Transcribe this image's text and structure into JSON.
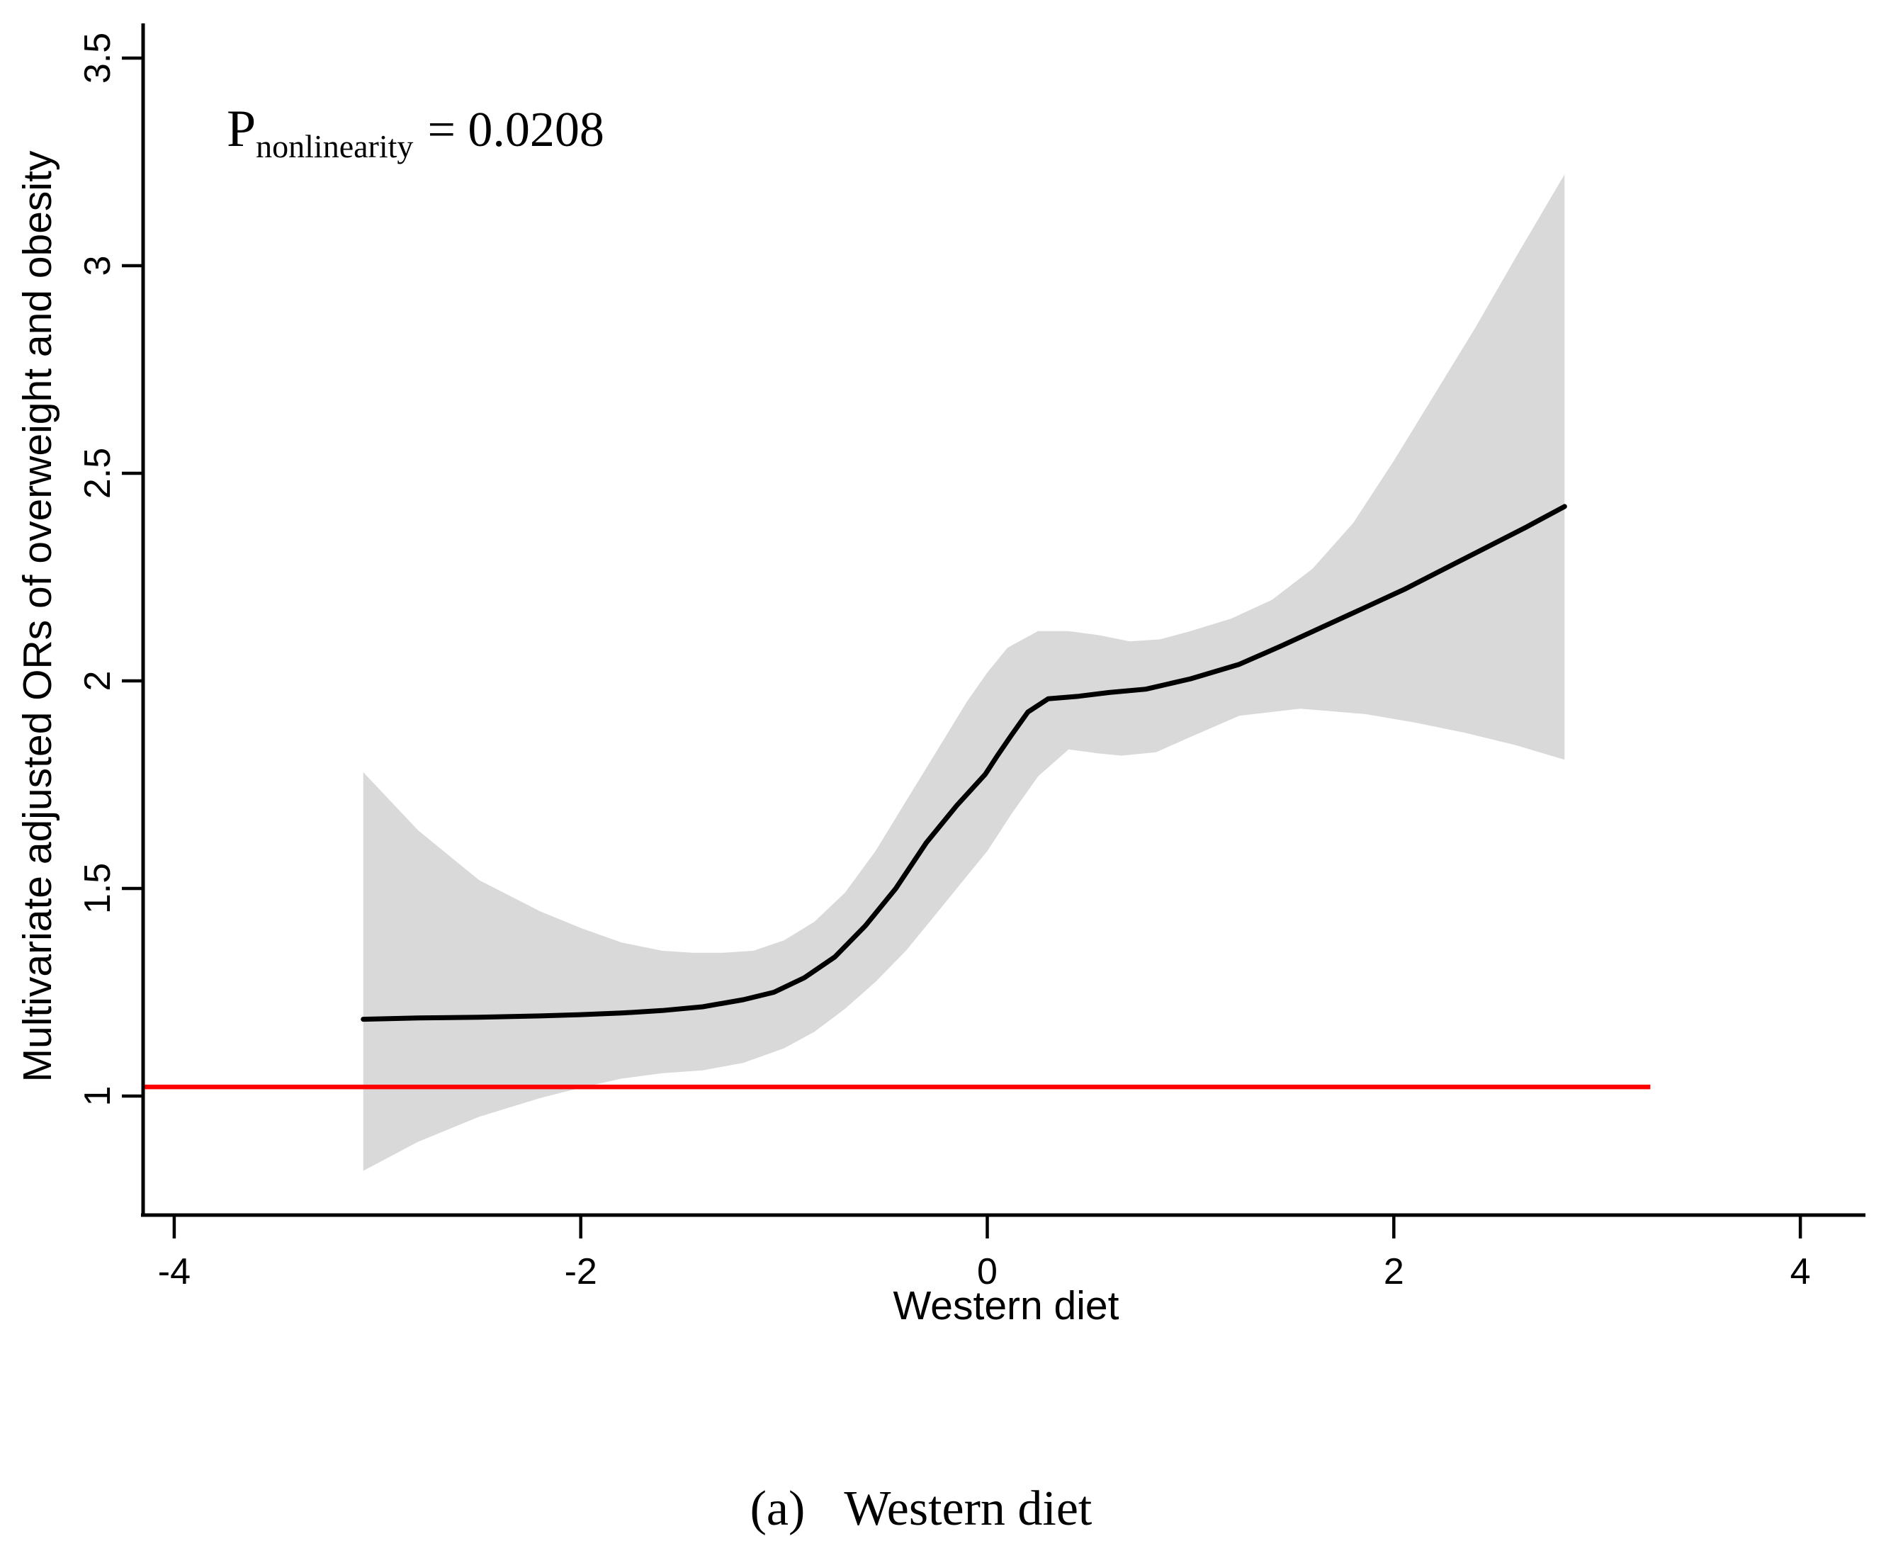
{
  "chart_data": {
    "type": "line",
    "subtype": "restricted-cubic-spline-with-confidence-band",
    "title": "",
    "xlabel": "Western diet",
    "ylabel": "Multivariate adjusted ORs of overweight and obesity",
    "caption": {
      "prefix": "(a)",
      "text": "Western diet"
    },
    "annotation": {
      "p": "P",
      "sub": "nonlinearity",
      "value": "= 0.0208"
    },
    "x_ticks": [
      -4,
      -2,
      0,
      2,
      4
    ],
    "y_ticks": [
      1,
      1.5,
      2,
      2.5,
      3,
      3.5
    ],
    "xlim": [
      -4.15,
      4.32
    ],
    "ylim": [
      0.71,
      3.58
    ],
    "grid": false,
    "legend": "none",
    "colors": {
      "curve": "#000000",
      "band": "#D9D9D9",
      "reference": "#FF0000",
      "axis": "#000000"
    },
    "series": [
      {
        "name": "multivariate-adjusted-OR-spline",
        "color": "#000000",
        "points": [
          [
            -3.07,
            1.185
          ],
          [
            -2.8,
            1.188
          ],
          [
            -2.5,
            1.19
          ],
          [
            -2.2,
            1.193
          ],
          [
            -2.0,
            1.196
          ],
          [
            -1.8,
            1.2
          ],
          [
            -1.6,
            1.206
          ],
          [
            -1.4,
            1.215
          ],
          [
            -1.2,
            1.232
          ],
          [
            -1.05,
            1.25
          ],
          [
            -0.9,
            1.285
          ],
          [
            -0.75,
            1.335
          ],
          [
            -0.6,
            1.41
          ],
          [
            -0.45,
            1.5
          ],
          [
            -0.3,
            1.61
          ],
          [
            -0.15,
            1.7
          ],
          [
            -0.01,
            1.775
          ],
          [
            0.05,
            1.82
          ],
          [
            0.12,
            1.87
          ],
          [
            0.2,
            1.925
          ],
          [
            0.3,
            1.957
          ],
          [
            0.45,
            1.963
          ],
          [
            0.6,
            1.972
          ],
          [
            0.78,
            1.98
          ],
          [
            1.0,
            2.005
          ],
          [
            1.24,
            2.04
          ],
          [
            1.45,
            2.085
          ],
          [
            1.65,
            2.13
          ],
          [
            1.85,
            2.175
          ],
          [
            2.05,
            2.22
          ],
          [
            2.25,
            2.27
          ],
          [
            2.45,
            2.32
          ],
          [
            2.65,
            2.37
          ],
          [
            2.84,
            2.42
          ]
        ]
      }
    ],
    "band": {
      "name": "95-percent-confidence-interval",
      "color": "#D9D9D9",
      "upper": [
        [
          -3.07,
          1.78
        ],
        [
          -2.8,
          1.64
        ],
        [
          -2.5,
          1.52
        ],
        [
          -2.2,
          1.445
        ],
        [
          -2.0,
          1.405
        ],
        [
          -1.8,
          1.37
        ],
        [
          -1.6,
          1.35
        ],
        [
          -1.45,
          1.345
        ],
        [
          -1.3,
          1.345
        ],
        [
          -1.15,
          1.35
        ],
        [
          -1.0,
          1.375
        ],
        [
          -0.85,
          1.42
        ],
        [
          -0.7,
          1.49
        ],
        [
          -0.55,
          1.59
        ],
        [
          -0.4,
          1.71
        ],
        [
          -0.25,
          1.83
        ],
        [
          -0.1,
          1.95
        ],
        [
          0.0,
          2.02
        ],
        [
          0.1,
          2.08
        ],
        [
          0.25,
          2.12
        ],
        [
          0.4,
          2.12
        ],
        [
          0.55,
          2.11
        ],
        [
          0.7,
          2.095
        ],
        [
          0.85,
          2.1
        ],
        [
          1.0,
          2.12
        ],
        [
          1.2,
          2.15
        ],
        [
          1.4,
          2.195
        ],
        [
          1.6,
          2.27
        ],
        [
          1.8,
          2.38
        ],
        [
          2.0,
          2.53
        ],
        [
          2.2,
          2.69
        ],
        [
          2.4,
          2.85
        ],
        [
          2.6,
          3.02
        ],
        [
          2.84,
          3.22
        ]
      ],
      "lower": [
        [
          -3.07,
          0.82
        ],
        [
          -2.8,
          0.89
        ],
        [
          -2.5,
          0.95
        ],
        [
          -2.2,
          0.995
        ],
        [
          -2.0,
          1.02
        ],
        [
          -1.8,
          1.042
        ],
        [
          -1.6,
          1.055
        ],
        [
          -1.4,
          1.062
        ],
        [
          -1.2,
          1.08
        ],
        [
          -1.0,
          1.115
        ],
        [
          -0.85,
          1.155
        ],
        [
          -0.7,
          1.21
        ],
        [
          -0.55,
          1.275
        ],
        [
          -0.4,
          1.35
        ],
        [
          -0.25,
          1.44
        ],
        [
          -0.1,
          1.53
        ],
        [
          0.0,
          1.59
        ],
        [
          0.12,
          1.68
        ],
        [
          0.25,
          1.77
        ],
        [
          0.4,
          1.835
        ],
        [
          0.55,
          1.825
        ],
        [
          0.66,
          1.82
        ],
        [
          0.83,
          1.828
        ],
        [
          1.0,
          1.865
        ],
        [
          1.24,
          1.916
        ],
        [
          1.54,
          1.933
        ],
        [
          1.86,
          1.92
        ],
        [
          2.1,
          1.9
        ],
        [
          2.35,
          1.875
        ],
        [
          2.6,
          1.845
        ],
        [
          2.84,
          1.81
        ]
      ]
    },
    "reference_line": {
      "name": "null-OR-reference",
      "color": "#FF0000",
      "y": 1.022,
      "x_start": -4.153,
      "x_end": 3.262
    }
  }
}
